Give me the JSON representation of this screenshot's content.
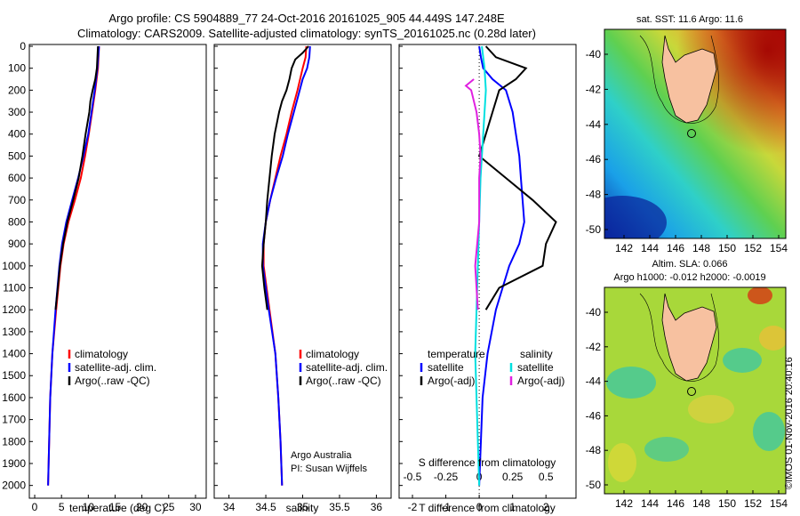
{
  "header": {
    "line1": "Argo profile: CS 5904889_77 24-Oct-2016 20161025_905 44.449S 147.248E",
    "line2": "Climatology: CARS2009. Satellite-adjusted climatology: synTS_20161025.nc (0.28d later)"
  },
  "colors": {
    "climatology": "#ff0000",
    "satellite": "#0000ff",
    "argo": "#000000",
    "s_satellite": "#00e0e0",
    "s_argo": "#e020e0",
    "land": "#f7c1a0"
  },
  "chart_data": [
    {
      "type": "line",
      "name": "temperature-profile",
      "xlabel": "temperature (deg C)",
      "xlim": [
        -1,
        32
      ],
      "ylim": [
        0,
        2050
      ],
      "xticks": [
        0,
        5,
        10,
        15,
        20,
        25,
        30
      ],
      "yticks": [
        0,
        100,
        200,
        300,
        400,
        500,
        600,
        700,
        800,
        900,
        1000,
        1100,
        1200,
        1300,
        1400,
        1500,
        1600,
        1700,
        1800,
        1900,
        2000
      ],
      "legend": [
        "climatology",
        "satellite-adj. clim.",
        "Argo(..raw -QC)"
      ],
      "series": [
        {
          "name": "climatology",
          "depth": [
            0,
            100,
            200,
            300,
            400,
            500,
            600,
            700,
            800,
            900,
            1000,
            1200,
            1400,
            1600,
            1800,
            2000
          ],
          "values": [
            12.0,
            11.8,
            11.3,
            10.7,
            10.1,
            9.4,
            8.6,
            7.5,
            6.3,
            5.4,
            4.8,
            4.0,
            3.3,
            2.9,
            2.7,
            2.5
          ]
        },
        {
          "name": "satellite-adj. clim.",
          "depth": [
            0,
            100,
            200,
            300,
            400,
            500,
            600,
            700,
            800,
            900,
            1000,
            1200,
            1400,
            1600,
            1800,
            2000
          ],
          "values": [
            12.0,
            11.7,
            11.2,
            10.6,
            10.0,
            9.1,
            8.1,
            7.0,
            5.9,
            5.1,
            4.6,
            3.9,
            3.3,
            2.9,
            2.7,
            2.5
          ]
        },
        {
          "name": "Argo(..raw -QC)",
          "depth": [
            0,
            100,
            150,
            200,
            250,
            300,
            400,
            500,
            600,
            700,
            800,
            900,
            1000,
            1100,
            1200
          ],
          "values": [
            11.8,
            11.6,
            11.3,
            10.8,
            10.4,
            10.2,
            9.5,
            8.9,
            8.2,
            7.2,
            6.1,
            5.3,
            4.7,
            4.3,
            3.9
          ]
        }
      ]
    },
    {
      "type": "line",
      "name": "salinity-profile",
      "xlabel": "salinity",
      "xlim": [
        33.8,
        36.2
      ],
      "ylim": [
        0,
        2050
      ],
      "xticks": [
        34,
        34.5,
        35,
        35.5,
        36
      ],
      "legend": [
        "climatology",
        "satellite-adj. clim.",
        "Argo(..raw -QC)"
      ],
      "series": [
        {
          "name": "climatology",
          "depth": [
            0,
            50,
            100,
            200,
            300,
            400,
            500,
            600,
            700,
            800,
            900,
            1000,
            1200,
            1400,
            1600,
            1800,
            2000
          ],
          "values": [
            35.05,
            35.04,
            35.0,
            34.93,
            34.85,
            34.78,
            34.7,
            34.63,
            34.56,
            34.5,
            34.47,
            34.47,
            34.55,
            34.63,
            34.67,
            34.7,
            34.72
          ]
        },
        {
          "name": "satellite-adj. clim.",
          "depth": [
            0,
            50,
            100,
            150,
            200,
            300,
            400,
            500,
            600,
            700,
            800,
            900,
            1000,
            1200,
            1400,
            1600,
            1800,
            2000
          ],
          "values": [
            35.1,
            35.09,
            35.06,
            35.0,
            34.96,
            34.88,
            34.8,
            34.73,
            34.64,
            34.56,
            34.5,
            34.46,
            34.46,
            34.54,
            34.63,
            34.67,
            34.7,
            34.72
          ]
        },
        {
          "name": "Argo(..raw -QC)",
          "depth": [
            0,
            30,
            60,
            100,
            150,
            200,
            250,
            300,
            400,
            500,
            600,
            700,
            800,
            900,
            1000,
            1100,
            1200
          ],
          "values": [
            35.08,
            35.0,
            34.9,
            34.85,
            34.82,
            34.78,
            34.72,
            34.68,
            34.62,
            34.58,
            34.55,
            34.52,
            34.5,
            34.47,
            34.45,
            34.48,
            34.52
          ]
        }
      ],
      "annotations": [
        "Argo Australia",
        "PI: Susan Wijffels"
      ]
    },
    {
      "type": "line",
      "name": "difference-profile",
      "xlabel": "T difference from climatology",
      "xlabel_top": "S difference from climatology",
      "xlim": [
        -2.4,
        2.9
      ],
      "xticks": [
        -2,
        -1,
        0,
        1,
        2
      ],
      "xticks_s": [
        -0.5,
        -0.25,
        0,
        0.25,
        0.5
      ],
      "ylim": [
        0,
        2050
      ],
      "legend_left_title": "temperature",
      "legend_right_title": "salinity",
      "legend_left": [
        "satellite",
        "Argo(-adj)"
      ],
      "legend_right": [
        "satellite",
        "Argo(-adj)"
      ],
      "series": [
        {
          "name": "T satellite",
          "depth": [
            0,
            50,
            100,
            150,
            200,
            300,
            400,
            500,
            600,
            700,
            800,
            900,
            1000,
            1200,
            1400,
            1600,
            1800,
            2000
          ],
          "values": [
            0.0,
            0.05,
            0.12,
            0.4,
            0.8,
            1.0,
            1.1,
            1.2,
            1.25,
            1.3,
            1.35,
            1.2,
            0.9,
            0.5,
            0.25,
            0.1,
            0.05,
            0.0
          ]
        },
        {
          "name": "T Argo(-adj)",
          "depth": [
            0,
            50,
            100,
            150,
            200,
            300,
            400,
            500,
            600,
            700,
            800,
            900,
            1000,
            1100,
            1200
          ],
          "values": [
            0.2,
            0.5,
            1.4,
            1.1,
            0.6,
            0.4,
            0.2,
            0.0,
            0.8,
            1.6,
            2.3,
            2.0,
            1.9,
            0.6,
            0.2
          ]
        },
        {
          "name": "S satellite",
          "depth": [
            0,
            100,
            200,
            300,
            400,
            500,
            600,
            800,
            1000,
            1200,
            1400,
            1600,
            1800,
            2000
          ],
          "values": [
            0.02,
            0.04,
            0.05,
            0.04,
            0.03,
            0.02,
            0.01,
            0.0,
            -0.01,
            -0.02,
            -0.03,
            -0.02,
            -0.01,
            0.0
          ]
        },
        {
          "name": "S Argo(-adj)",
          "depth": [
            150,
            180,
            200,
            250,
            300,
            400,
            500,
            600,
            800,
            1000,
            1100,
            1200
          ],
          "values": [
            -0.04,
            -0.1,
            -0.06,
            -0.04,
            -0.02,
            0.0,
            0.01,
            0.0,
            0.0,
            -0.03,
            -0.02,
            -0.01
          ]
        }
      ]
    }
  ],
  "map_sst": {
    "title": "sat. SST: 11.6 Argo: 11.6",
    "yticks": [
      "-40",
      "-42",
      "-44",
      "-46",
      "-48",
      "-50"
    ],
    "xticks": [
      "142",
      "144",
      "146",
      "148",
      "150",
      "152",
      "154"
    ]
  },
  "map_sla": {
    "title_line1": "Altim. SLA: 0.066",
    "title_line2": "Argo h1000: -0.012 h2000: -0.0019",
    "yticks": [
      "-40",
      "-42",
      "-44",
      "-46",
      "-48",
      "-50"
    ],
    "xticks": [
      "142",
      "144",
      "146",
      "148",
      "150",
      "152",
      "154"
    ]
  },
  "footer": "©IMOS 01-Nov-2016 20:40:16"
}
